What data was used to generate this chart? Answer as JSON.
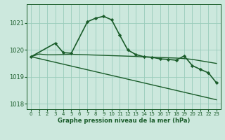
{
  "bg_color": "#cce8dd",
  "grid_color": "#99ccbb",
  "line_color": "#1a5c2a",
  "xlim": [
    -0.5,
    23.5
  ],
  "ylim": [
    1017.8,
    1021.7
  ],
  "yticks": [
    1018,
    1019,
    1020,
    1021
  ],
  "xticks": [
    0,
    1,
    2,
    3,
    4,
    5,
    6,
    7,
    8,
    9,
    10,
    11,
    12,
    13,
    14,
    15,
    16,
    17,
    18,
    19,
    20,
    21,
    22,
    23
  ],
  "xlabel": "Graphe pression niveau de la mer (hPa)",
  "series": [
    {
      "x": [
        0,
        1,
        2,
        3,
        4,
        5,
        6,
        7,
        8,
        9,
        10,
        11,
        12,
        13,
        14,
        15,
        16,
        17,
        18,
        19,
        20,
        21,
        22,
        23
      ],
      "y": [
        1019.75,
        1019.85,
        1019.82,
        1019.82,
        1019.83,
        1019.84,
        1019.83,
        1019.82,
        1019.81,
        1019.8,
        1019.79,
        1019.78,
        1019.77,
        1019.76,
        1019.74,
        1019.73,
        1019.72,
        1019.71,
        1019.7,
        1019.68,
        1019.65,
        1019.6,
        1019.55,
        1019.5
      ],
      "lw": 1.0
    },
    {
      "x": [
        0,
        3,
        4,
        5,
        7,
        8,
        9,
        10,
        11,
        12,
        13,
        14,
        15,
        16,
        17,
        18,
        19,
        20,
        21,
        22,
        23
      ],
      "y": [
        1019.75,
        1020.25,
        1019.9,
        1019.88,
        1021.05,
        1021.18,
        1021.25,
        1021.12,
        1020.55,
        1020.0,
        1019.83,
        1019.75,
        1019.73,
        1019.67,
        1019.65,
        1019.62,
        1019.78,
        1019.42,
        1019.28,
        1019.15,
        1018.78
      ],
      "lw": 1.2
    },
    {
      "x": [
        0,
        23
      ],
      "y": [
        1019.75,
        1018.15
      ],
      "lw": 1.0
    }
  ]
}
